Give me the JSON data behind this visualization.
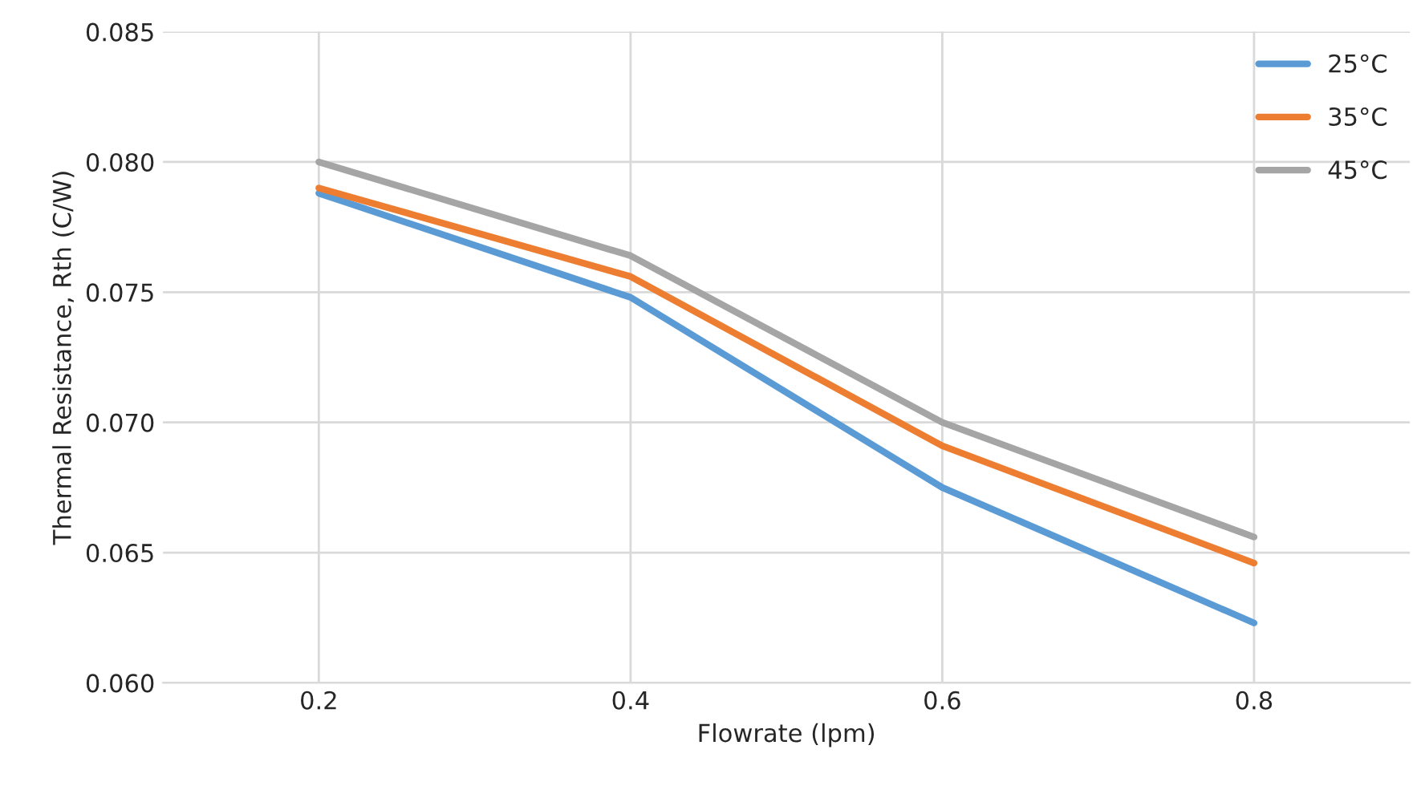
{
  "chart_data": {
    "type": "line",
    "xlabel": "Flowrate (lpm)",
    "ylabel": "Thermal Resistance, Rth (C/W)",
    "x": [
      0.2,
      0.4,
      0.6,
      0.8
    ],
    "series": [
      {
        "name": "25°C",
        "color": "#5b9bd5",
        "values": [
          0.0788,
          0.0748,
          0.0675,
          0.0623
        ]
      },
      {
        "name": "35°C",
        "color": "#ed7d31",
        "values": [
          0.079,
          0.0756,
          0.0691,
          0.0646
        ]
      },
      {
        "name": "45°C",
        "color": "#a5a5a5",
        "values": [
          0.08,
          0.0764,
          0.07,
          0.0656
        ]
      }
    ],
    "xlim": [
      0.1,
      0.9
    ],
    "xticks": [
      0.2,
      0.4,
      0.6,
      0.8
    ],
    "ylim": [
      0.06,
      0.085
    ],
    "yticks": [
      {
        "value": 0.06,
        "label": "0.060"
      },
      {
        "value": 0.065,
        "label": "0.065"
      },
      {
        "value": 0.07,
        "label": "0.070"
      },
      {
        "value": 0.075,
        "label": "0.075"
      },
      {
        "value": 0.08,
        "label": "0.080"
      },
      {
        "value": 0.085,
        "label": "0.085"
      }
    ],
    "grid": true,
    "legend": "top right",
    "marker": "none",
    "line_style": "solid"
  }
}
